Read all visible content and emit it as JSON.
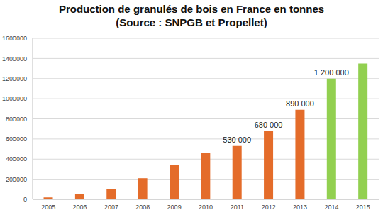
{
  "chart_data": {
    "type": "bar",
    "title": "Production de granulés de bois en France en tonnes",
    "subtitle": "(Source : SNPGB et Propellet)",
    "categories": [
      "2005",
      "2006",
      "2007",
      "2008",
      "2009",
      "2010",
      "2011",
      "2012",
      "2013",
      "2014",
      "2015"
    ],
    "values": [
      20000,
      50000,
      105000,
      210000,
      345000,
      465000,
      530000,
      680000,
      890000,
      1200000,
      1350000
    ],
    "value_labels": [
      null,
      null,
      null,
      null,
      null,
      null,
      "530 000",
      "680 000",
      "890 000",
      "1 200 000",
      null
    ],
    "data_labels": true,
    "colors": [
      "#e46c2a",
      "#e46c2a",
      "#e46c2a",
      "#e46c2a",
      "#e46c2a",
      "#e46c2a",
      "#e46c2a",
      "#e46c2a",
      "#e46c2a",
      "#92d050",
      "#92d050"
    ],
    "ylim": [
      0,
      1600000
    ],
    "yticks": [
      0,
      200000,
      400000,
      600000,
      800000,
      1000000,
      1200000,
      1400000,
      1600000
    ],
    "grid": true
  }
}
